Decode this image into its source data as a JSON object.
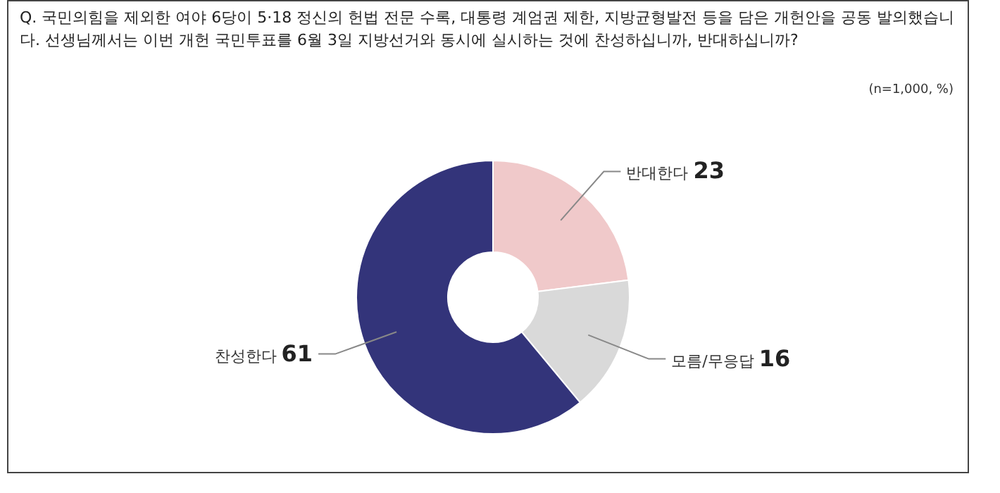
{
  "chart_data": {
    "type": "donut",
    "title": "Q. 국민의힘을 제외한 여야 6당이 5·18 정신의 헌법 전문 수록, 대통령 계엄권 제한, 지방균형발전 등을 담은 개헌안을 공동 발의했습니다. 선생님께서는 이번 개헌 국민투표를 6월 3일 지방선거와 동시에 실시하는 것에 찬성하십니까, 반대하십니까?",
    "annotations": [
      "(n=1,000, %)"
    ],
    "categories": [
      "반대한다",
      "모름/무응답",
      "찬성한다"
    ],
    "values": [
      23,
      16,
      61
    ],
    "colors": [
      "#f0c9ca",
      "#d9d9d9",
      "#33347a"
    ],
    "data_labels": true
  }
}
